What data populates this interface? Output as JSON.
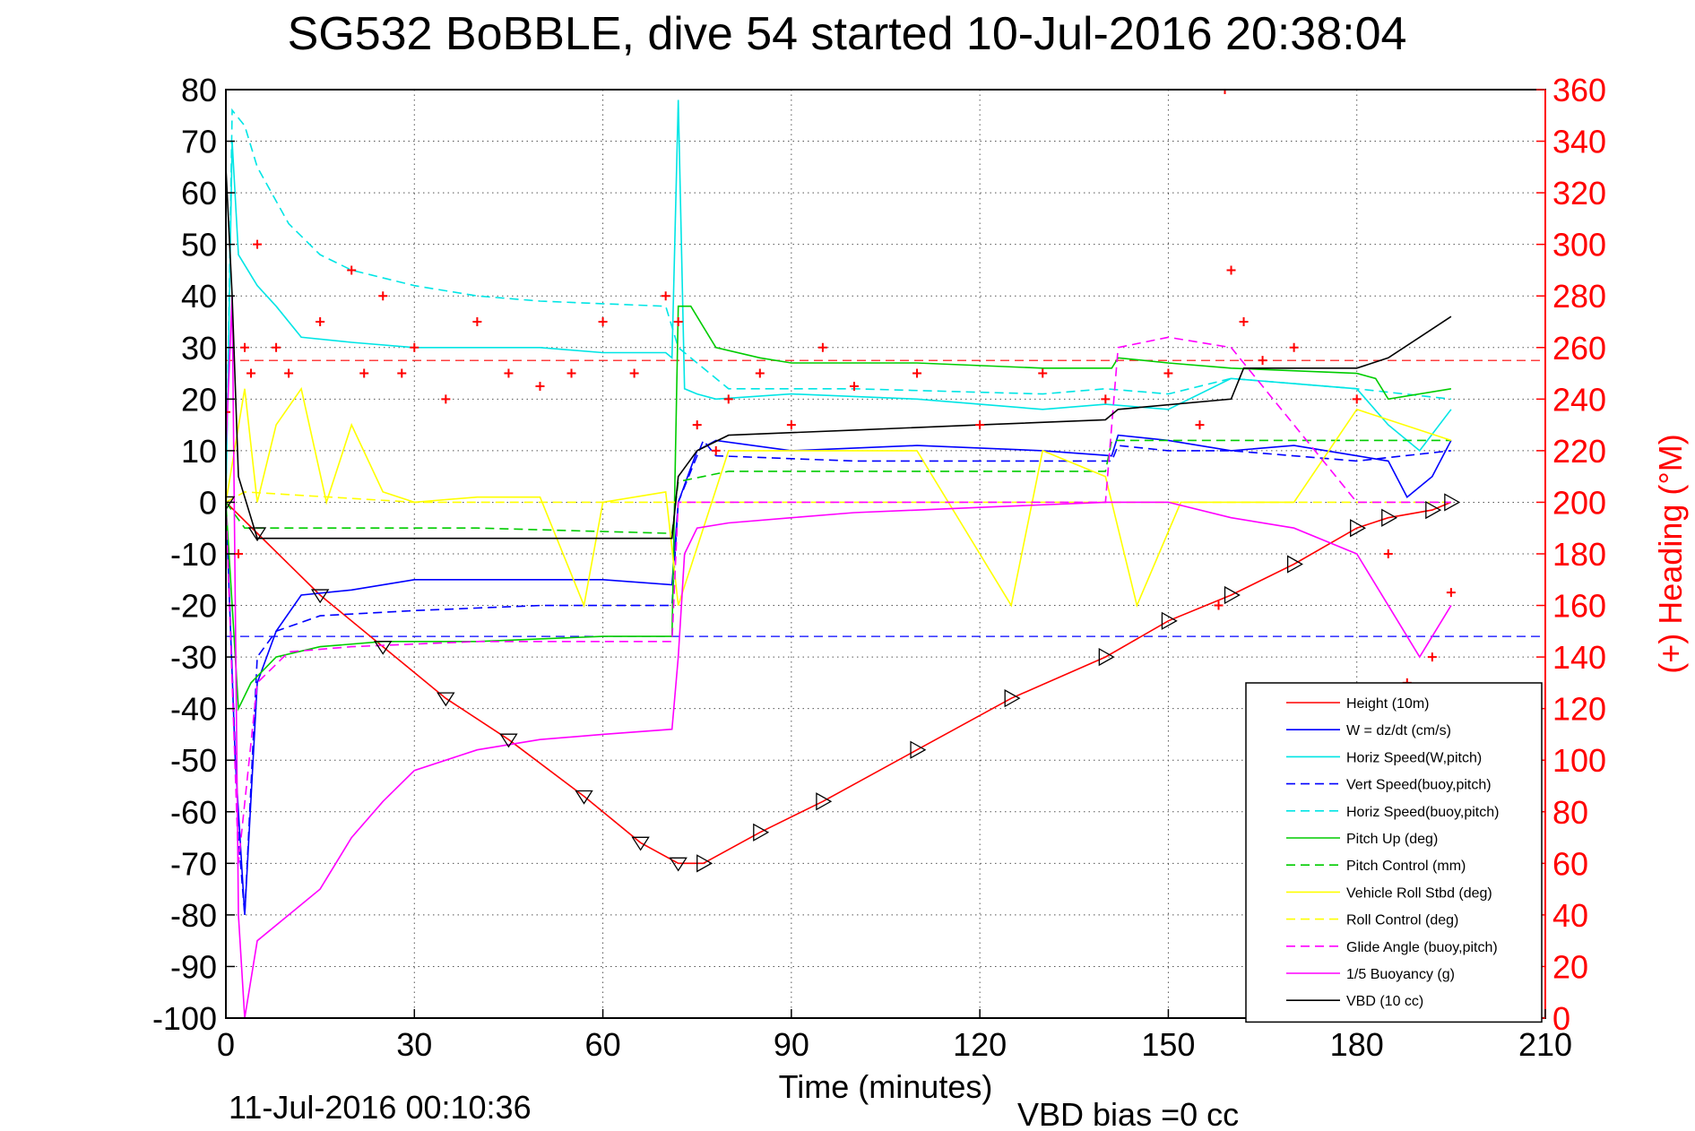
{
  "chart_data": {
    "type": "line",
    "title": "SG532 BoBBLE, dive 54 started 10-Jul-2016 20:38:04",
    "xlabel": "Time (minutes)",
    "ylabel": "",
    "y2label": "(+) Heading (°M)",
    "xlim": [
      0,
      210
    ],
    "ylim": [
      -100,
      80
    ],
    "y2lim": [
      0,
      360
    ],
    "xticks": [
      "0",
      "30",
      "60",
      "90",
      "120",
      "150",
      "180",
      "210"
    ],
    "yticks": [
      "80",
      "70",
      "60",
      "50",
      "40",
      "30",
      "20",
      "10",
      "0",
      "-10",
      "-20",
      "-30",
      "-40",
      "-50",
      "-60",
      "-70",
      "-80",
      "-90",
      "-100"
    ],
    "y2ticks": [
      "360",
      "340",
      "320",
      "300",
      "280",
      "260",
      "240",
      "220",
      "200",
      "180",
      "160",
      "140",
      "120",
      "100",
      "80",
      "60",
      "40",
      "20",
      "0"
    ],
    "grid": true,
    "legend_position": "bottom-right",
    "footer_left": "11-Jul-2016 00:10:36",
    "footer_right": "VBD bias =0 cc",
    "series": [
      {
        "name": "Height (10m)",
        "color": "#ff0000",
        "style": "solid",
        "x": [
          0,
          5,
          15,
          25,
          35,
          45,
          57,
          66,
          72,
          76,
          85,
          95,
          110,
          125,
          140,
          150,
          160,
          170,
          180,
          185,
          192,
          195
        ],
        "y": [
          0,
          -6,
          -18,
          -28,
          -38,
          -46,
          -57,
          -66,
          -70,
          -70,
          -64,
          -58,
          -48,
          -38,
          -30,
          -23,
          -18,
          -12,
          -5,
          -3,
          -1.5,
          0
        ]
      },
      {
        "name": "W = dz/dt (cm/s)",
        "color": "#0000ff",
        "style": "solid",
        "x": [
          0,
          1.5,
          3,
          5,
          8,
          12,
          20,
          30,
          45,
          60,
          71,
          72,
          75,
          78,
          90,
          110,
          130,
          141,
          142,
          150,
          160,
          170,
          180,
          185,
          188,
          192,
          195
        ],
        "y": [
          0,
          -50,
          -80,
          -35,
          -25,
          -18,
          -17,
          -15,
          -15,
          -15,
          -16,
          0,
          10,
          12,
          10,
          11,
          10,
          9,
          13,
          12,
          10,
          11,
          9,
          8,
          1,
          5,
          12
        ]
      },
      {
        "name": "Horiz Speed(W,pitch)",
        "color": "#00e5e5",
        "style": "solid",
        "x": [
          0,
          1,
          2,
          5,
          8,
          12,
          20,
          30,
          40,
          50,
          60,
          70,
          71,
          72,
          73,
          75,
          78,
          90,
          110,
          130,
          140,
          150,
          160,
          170,
          180,
          185,
          190,
          195
        ],
        "y": [
          0,
          70,
          48,
          42,
          38,
          32,
          31,
          30,
          30,
          30,
          29,
          29,
          28,
          78,
          22,
          21,
          20,
          21,
          20,
          18,
          19,
          18,
          24,
          23,
          22,
          15,
          10,
          18
        ]
      },
      {
        "name": "Vert Speed(buoy,pitch)",
        "color": "#0000ff",
        "style": "dashed",
        "x": [
          0,
          2,
          3,
          5,
          8,
          15,
          30,
          50,
          71,
          72,
          76,
          78,
          100,
          130,
          141,
          142,
          150,
          160,
          180,
          195
        ],
        "y": [
          0,
          -65,
          -80,
          -30,
          -25,
          -22,
          -21,
          -20,
          -20,
          0,
          12,
          9,
          8,
          8,
          8,
          11,
          10,
          10,
          8,
          10
        ]
      },
      {
        "name": "Horiz Speed(buoy,pitch)",
        "color": "#00e5e5",
        "style": "dashed",
        "x": [
          0,
          1,
          3,
          5,
          10,
          15,
          20,
          30,
          40,
          50,
          60,
          70,
          72,
          80,
          100,
          130,
          140,
          150,
          160,
          180,
          195
        ],
        "y": [
          0,
          76,
          73,
          65,
          54,
          48,
          45,
          42,
          40,
          39,
          38.5,
          38,
          30,
          22,
          22,
          21,
          22,
          21,
          24,
          22,
          20
        ]
      },
      {
        "name": "Pitch Up (deg)",
        "color": "#00cc00",
        "style": "solid",
        "x": [
          0,
          2,
          4,
          8,
          15,
          25,
          40,
          60,
          71,
          72,
          74,
          76,
          78,
          85,
          90,
          110,
          130,
          141,
          142,
          150,
          160,
          180,
          183,
          185,
          195
        ],
        "y": [
          0,
          -40,
          -35,
          -30,
          -28,
          -27,
          -27,
          -26,
          -26,
          38,
          38,
          34,
          30,
          28,
          27,
          27,
          26,
          26,
          28,
          27,
          26,
          25,
          24,
          20,
          22
        ]
      },
      {
        "name": "Pitch Control (mm)",
        "color": "#00cc00",
        "style": "dashed",
        "x": [
          0,
          3,
          10,
          20,
          40,
          70,
          71,
          72,
          80,
          100,
          140,
          141,
          150,
          160,
          180,
          195
        ],
        "y": [
          0,
          -5,
          -5,
          -5,
          -5,
          -6,
          -6,
          4,
          6,
          6,
          6,
          12,
          12,
          12,
          12,
          12
        ]
      },
      {
        "name": "Vehicle Roll Stbd (deg)",
        "color": "#ffff00",
        "style": "solid",
        "x": [
          0,
          3,
          5,
          8,
          12,
          16,
          20,
          25,
          30,
          40,
          50,
          57,
          60,
          70,
          72,
          80,
          90,
          110,
          125,
          130,
          140,
          145,
          152,
          160,
          170,
          180,
          195
        ],
        "y": [
          0,
          22,
          0,
          15,
          22,
          0,
          15,
          2,
          0,
          1,
          1,
          -20,
          0,
          2,
          -20,
          10,
          10,
          10,
          -20,
          10,
          5,
          -20,
          0,
          0,
          0,
          18,
          12
        ]
      },
      {
        "name": "Roll Control (deg)",
        "color": "#ffff00",
        "style": "dashed",
        "x": [
          0,
          3,
          30,
          60,
          72,
          100,
          140,
          150,
          160,
          180,
          195
        ],
        "y": [
          0,
          2,
          0,
          0,
          0,
          0,
          0,
          0,
          0,
          0,
          0
        ]
      },
      {
        "name": "Glide Angle (buoy,pitch)",
        "color": "#ff00ff",
        "style": "dashed",
        "x": [
          0,
          2,
          5,
          10,
          20,
          40,
          60,
          71,
          72,
          80,
          100,
          140,
          142,
          150,
          160,
          180,
          195
        ],
        "y": [
          0,
          -70,
          -35,
          -29,
          -28,
          -27,
          -27,
          -27,
          0,
          0,
          0,
          0,
          30,
          32,
          30,
          0,
          0
        ]
      },
      {
        "name": "1/5 Buoyancy (g)",
        "color": "#ff00ff",
        "style": "solid",
        "x": [
          0,
          1,
          2,
          3,
          5,
          10,
          15,
          20,
          25,
          30,
          40,
          50,
          60,
          71,
          72,
          73,
          75,
          80,
          90,
          100,
          120,
          140,
          150,
          160,
          170,
          180,
          185,
          190,
          195
        ],
        "y": [
          10,
          40,
          -80,
          -100,
          -85,
          -80,
          -75,
          -65,
          -58,
          -52,
          -48,
          -46,
          -45,
          -44,
          -30,
          -10,
          -5,
          -4,
          -3,
          -2,
          -1,
          0,
          0,
          -3,
          -5,
          -10,
          -20,
          -30,
          -20
        ]
      },
      {
        "name": "VBD (10 cc)",
        "color": "#000000",
        "style": "solid",
        "x": [
          0,
          1,
          2,
          5,
          20,
          40,
          60,
          71,
          72,
          75,
          80,
          100,
          120,
          140,
          142,
          160,
          162,
          180,
          185,
          190,
          195
        ],
        "y": [
          65,
          40,
          5,
          -7,
          -7,
          -7,
          -7,
          -7,
          5,
          10,
          13,
          14,
          15,
          16,
          18,
          20,
          26,
          26,
          28,
          32,
          36
        ]
      }
    ],
    "heading": {
      "name": "Heading",
      "color": "#ff0000",
      "marker": "+",
      "axis": "right",
      "x": [
        0,
        2,
        3,
        4,
        5,
        8,
        10,
        15,
        20,
        22,
        25,
        28,
        30,
        35,
        40,
        45,
        50,
        55,
        60,
        65,
        70,
        72,
        75,
        78,
        80,
        85,
        90,
        95,
        100,
        110,
        120,
        130,
        140,
        150,
        155,
        158,
        159,
        160,
        162,
        165,
        170,
        180,
        185,
        188,
        192,
        195
      ],
      "y": [
        235,
        180,
        260,
        250,
        300,
        260,
        250,
        270,
        290,
        250,
        280,
        250,
        260,
        240,
        270,
        250,
        245,
        250,
        270,
        250,
        280,
        270,
        230,
        220,
        240,
        250,
        230,
        260,
        245,
        250,
        230,
        250,
        240,
        250,
        230,
        160,
        360,
        290,
        270,
        255,
        260,
        240,
        180,
        130,
        140,
        165
      ]
    },
    "reference_lines": [
      {
        "color": "#ff0000",
        "style": "dashed",
        "axis": "right",
        "value": 255
      },
      {
        "color": "#0000ff",
        "style": "dashed",
        "axis": "left",
        "value": -26
      }
    ]
  }
}
